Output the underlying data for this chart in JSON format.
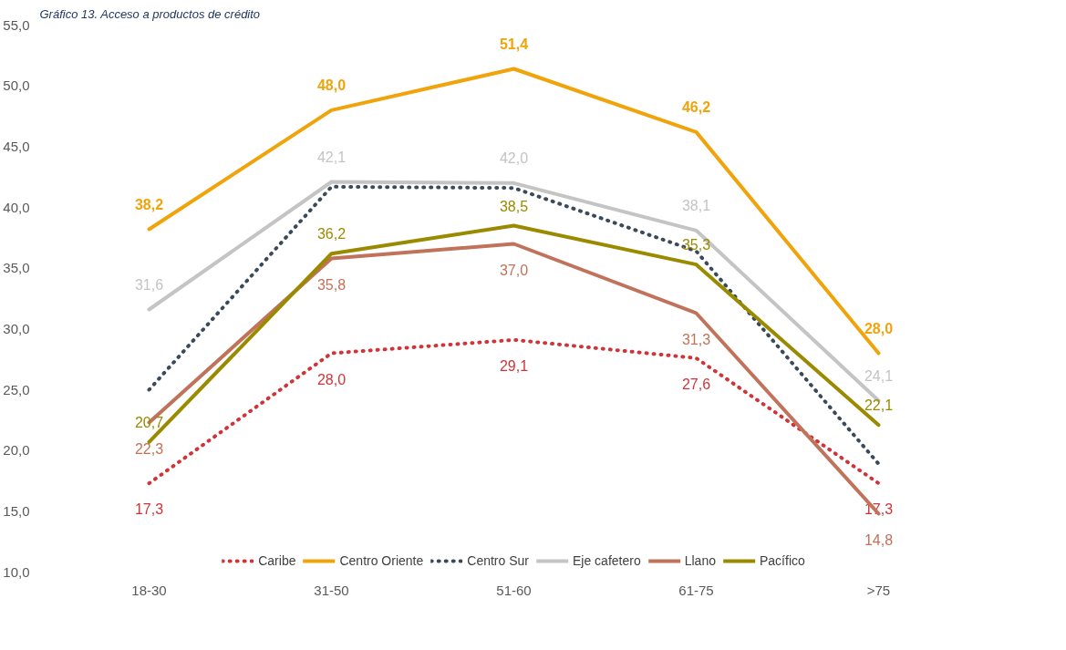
{
  "chart_data": {
    "type": "line",
    "title": "Gráfico 13. Acceso a productos de crédito",
    "categories": [
      "18-30",
      "31-50",
      "51-60",
      "61-75",
      ">75"
    ],
    "series": [
      {
        "name": "Caribe",
        "color": "#d13438",
        "line_style": "dotted",
        "values": [
          17.3,
          28.0,
          29.1,
          27.6,
          17.3
        ],
        "value_labels": [
          "17,3",
          "28,0",
          "29,1",
          "27,6",
          "17,3"
        ]
      },
      {
        "name": "Centro Oriente",
        "color": "#f0a30a",
        "line_style": "solid",
        "values": [
          38.2,
          48.0,
          51.4,
          46.2,
          28.0
        ],
        "value_labels": [
          "38,2",
          "48,0",
          "51,4",
          "46,2",
          "28,0"
        ]
      },
      {
        "name": "Centro Sur",
        "color": "#3b4a5a",
        "line_style": "dotted",
        "values": [
          25.0,
          41.7,
          41.6,
          36.4,
          18.9
        ]
      },
      {
        "name": "Eje cafetero",
        "color": "#c4c4c4",
        "line_style": "solid",
        "values": [
          31.6,
          42.1,
          42.0,
          38.1,
          24.1
        ],
        "value_labels": [
          "31,6",
          "42,1",
          "42,0",
          "38,1",
          "24,1"
        ]
      },
      {
        "name": "Llano",
        "color": "#c0735a",
        "line_style": "solid",
        "values": [
          22.3,
          35.8,
          37.0,
          31.3,
          14.8
        ],
        "value_labels": [
          "22,3",
          "35,8",
          "37,0",
          "31,3",
          "14,8"
        ]
      },
      {
        "name": "Pacífico",
        "color": "#9a8a00",
        "line_style": "solid",
        "values": [
          20.7,
          36.2,
          38.5,
          35.3,
          22.1
        ],
        "value_labels": [
          "20,7",
          "36,2",
          "38,5",
          "35,3",
          "22,1"
        ]
      }
    ],
    "ylim": [
      10,
      55
    ],
    "yticks": [
      {
        "value": 10,
        "label": "10,0"
      },
      {
        "value": 15,
        "label": "15,0"
      },
      {
        "value": 20,
        "label": "20,0"
      },
      {
        "value": 25,
        "label": "25,0"
      },
      {
        "value": 30,
        "label": "30,0"
      },
      {
        "value": 35,
        "label": "35,0"
      },
      {
        "value": 40,
        "label": "40,0"
      },
      {
        "value": 45,
        "label": "45,0"
      },
      {
        "value": 50,
        "label": "50,0"
      },
      {
        "value": 55,
        "label": "55,0"
      }
    ],
    "grid": false,
    "legend": "bottom",
    "marker": "none"
  }
}
